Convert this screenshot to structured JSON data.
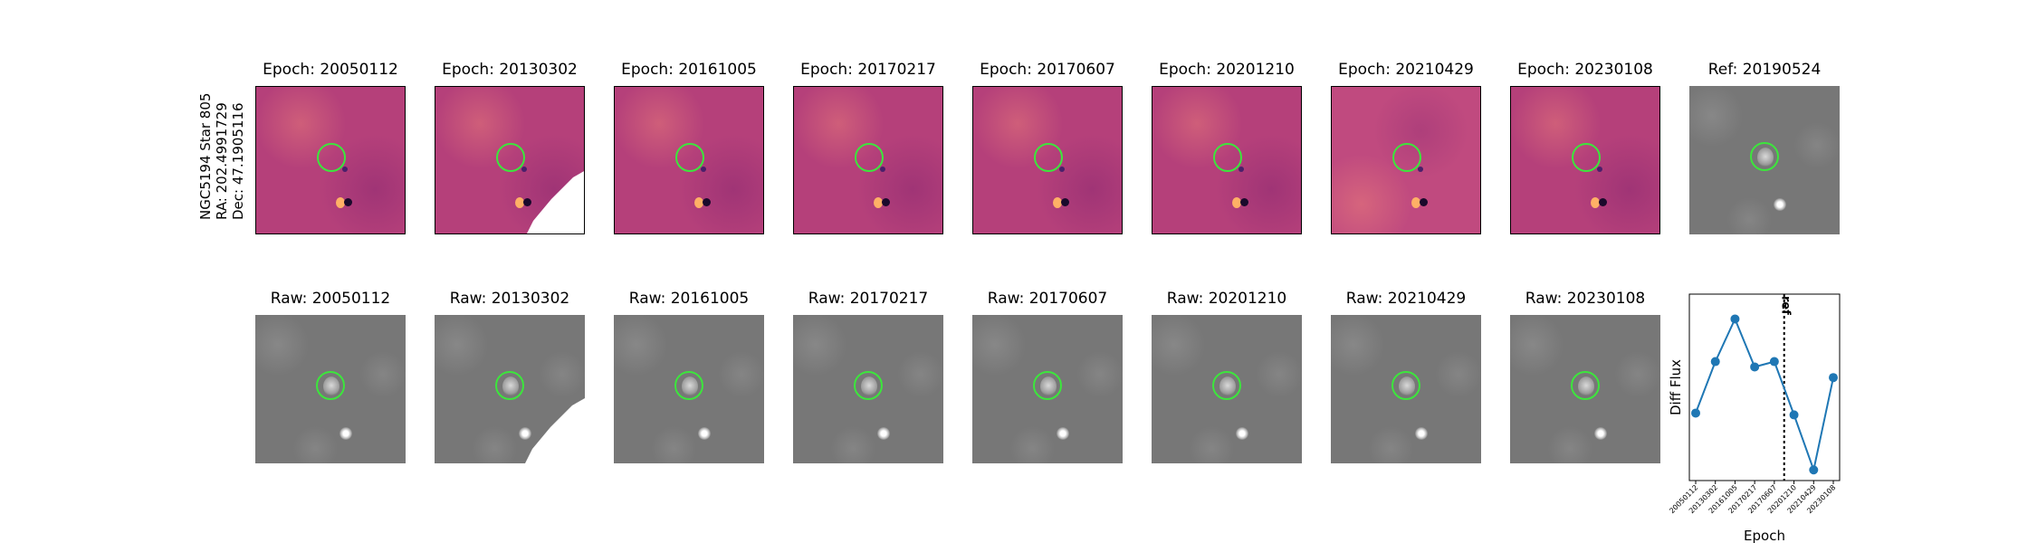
{
  "object_label": {
    "name": "NGC5194 Star 805",
    "ra": "RA: 202.4991729",
    "dec": "Dec: 47.1905116"
  },
  "diff_panels": [
    {
      "title": "Epoch: 20050112"
    },
    {
      "title": "Epoch: 20130302"
    },
    {
      "title": "Epoch: 20161005"
    },
    {
      "title": "Epoch: 20170217"
    },
    {
      "title": "Epoch: 20170607"
    },
    {
      "title": "Epoch: 20201210"
    },
    {
      "title": "Epoch: 20210429"
    },
    {
      "title": "Epoch: 20230108"
    }
  ],
  "ref_panel": {
    "title": "Ref: 20190524"
  },
  "raw_panels": [
    {
      "title": "Raw: 20050112"
    },
    {
      "title": "Raw: 20130302"
    },
    {
      "title": "Raw: 20161005"
    },
    {
      "title": "Raw: 20170217"
    },
    {
      "title": "Raw: 20170607"
    },
    {
      "title": "Raw: 20201210"
    },
    {
      "title": "Raw: 20210429"
    },
    {
      "title": "Raw: 20230108"
    }
  ],
  "colors": {
    "diff_cmap": "#b5407a",
    "raw_gray": "#777777",
    "circle": "#3ce63c",
    "line": "#1f77b4"
  },
  "chart_data": {
    "type": "line",
    "categories": [
      "20050112",
      "20130302",
      "20161005",
      "20170217",
      "20170607",
      "20201210",
      "20210429",
      "20230108"
    ],
    "values": [
      0.33,
      0.62,
      0.86,
      0.59,
      0.62,
      0.32,
      0.01,
      0.53
    ],
    "ylabel": "Diff Flux",
    "xlabel": "Epoch",
    "ylim": [
      -0.05,
      1.0
    ],
    "ref_line_label": "ref",
    "ref_line_position": 4.5
  }
}
